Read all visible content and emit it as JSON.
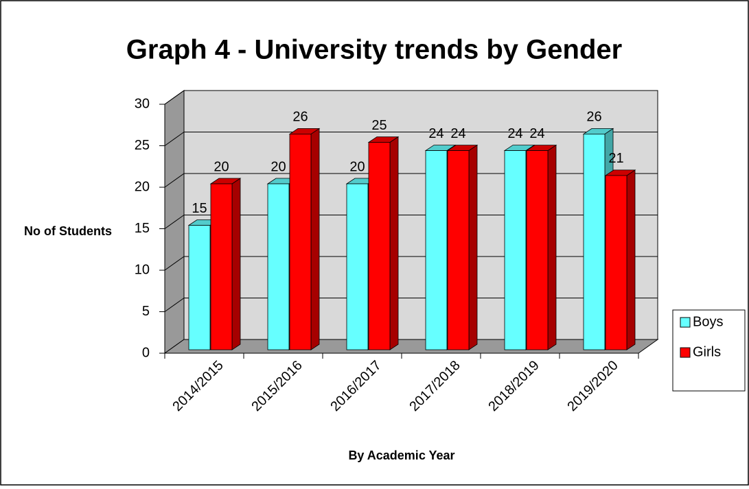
{
  "chart_data": {
    "type": "bar3d",
    "title": "Graph 4 - University trends by Gender",
    "categories": [
      "2014/2015",
      "2015/2016",
      "2016/2017",
      "2017/2018",
      "2018/2019",
      "2019/2020"
    ],
    "series": [
      {
        "name": "Boys",
        "color": "#66ffff",
        "values": [
          15,
          20,
          20,
          24,
          24,
          26
        ]
      },
      {
        "name": "Girls",
        "color": "#ff0000",
        "values": [
          20,
          26,
          25,
          24,
          24,
          21
        ]
      }
    ],
    "ylim": [
      0,
      30
    ],
    "yticks": [
      0,
      5,
      10,
      15,
      20,
      25,
      30
    ],
    "grid": true,
    "ylabel": "No of Students",
    "xlabel": "By Academic Year",
    "legend": "right"
  }
}
